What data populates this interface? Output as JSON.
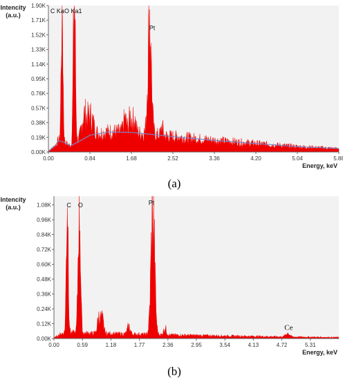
{
  "colors": {
    "spectrum": "#ee0000",
    "background_line": "#7d86c8",
    "plot_bg": "#f2f2f2"
  },
  "chart_data": [
    {
      "type": "area",
      "panel_label": "(a)",
      "ylabel": "Intencity\n(a.u.)",
      "xlabel": "Energy, keV",
      "xlim": [
        0,
        5.88
      ],
      "ylim": [
        0,
        1900
      ],
      "x_ticks": [
        "0.00",
        "0.84",
        "1.68",
        "2.52",
        "3.36",
        "4.20",
        "5.04",
        "5.88"
      ],
      "x_tick_values": [
        0,
        0.84,
        1.68,
        2.52,
        3.36,
        4.2,
        5.04,
        5.88
      ],
      "y_ticks": [
        "0.00K",
        "0.19K",
        "0.38K",
        "0.57K",
        "0.76K",
        "0.95K",
        "1.14K",
        "1.33K",
        "1.52K",
        "1.71K",
        "1.90K"
      ],
      "y_tick_values": [
        0,
        190,
        380,
        570,
        760,
        950,
        1140,
        1330,
        1520,
        1710,
        1900
      ],
      "peaks": [
        {
          "label": "C Ka1",
          "x": 0.277,
          "height": 1900,
          "width": 0.018
        },
        {
          "label": "O Ka1",
          "x": 0.525,
          "height": 1900,
          "width": 0.022
        },
        {
          "label": "Pt",
          "x": 2.048,
          "height": 1560,
          "width": 0.035
        },
        {
          "label": "",
          "x": 0.72,
          "height": 290,
          "width": 0.05
        },
        {
          "label": "",
          "x": 0.85,
          "height": 240,
          "width": 0.06
        },
        {
          "label": "",
          "x": 1.55,
          "height": 170,
          "width": 0.03
        },
        {
          "label": "",
          "x": 1.66,
          "height": 200,
          "width": 0.03
        },
        {
          "label": "",
          "x": 1.74,
          "height": 175,
          "width": 0.03
        },
        {
          "label": "",
          "x": 2.3,
          "height": 120,
          "width": 0.02
        }
      ],
      "peak_labels": [
        {
          "text": "C Ka",
          "x": 0.18,
          "y": 1800
        },
        {
          "text": "O Ka1",
          "x": 0.5,
          "y": 1800
        },
        {
          "text": "Pt",
          "x": 2.1,
          "y": 1580
        }
      ],
      "background": {
        "x": [
          0.0,
          0.15,
          0.2,
          0.3,
          0.45,
          0.6,
          0.85,
          1.2,
          1.68,
          2.52,
          3.36,
          4.2,
          5.04,
          5.88
        ],
        "y": [
          10,
          90,
          150,
          130,
          80,
          130,
          220,
          260,
          255,
          200,
          150,
          110,
          70,
          45
        ]
      },
      "grid": false,
      "legend": "none"
    },
    {
      "type": "area",
      "panel_label": "(b)",
      "ylabel": "Intencity\n(a.u.)",
      "xlabel": "Energy, keV",
      "xlim": [
        0,
        5.9
      ],
      "ylim": [
        0,
        1150
      ],
      "x_ticks": [
        "0.00",
        "0.59",
        "1.18",
        "1.77",
        "2.36",
        "2.95",
        "3.54",
        "4.13",
        "4.72",
        "5.31"
      ],
      "x_tick_values": [
        0,
        0.59,
        1.18,
        1.77,
        2.36,
        2.95,
        3.54,
        4.13,
        4.72,
        5.31
      ],
      "y_ticks": [
        "0.00K",
        "0.12K",
        "0.24K",
        "0.36K",
        "0.48K",
        "0.60K",
        "0.72K",
        "0.84K",
        "0.96K",
        "1.08K"
      ],
      "y_tick_values": [
        0,
        120,
        240,
        360,
        480,
        600,
        720,
        840,
        960,
        1080
      ],
      "peaks": [
        {
          "label": "C",
          "x": 0.277,
          "height": 1150,
          "width": 0.02
        },
        {
          "label": "O",
          "x": 0.525,
          "height": 1150,
          "width": 0.024
        },
        {
          "label": "Pt",
          "x": 2.048,
          "height": 1000,
          "width": 0.038
        },
        {
          "label": "",
          "x": 0.93,
          "height": 130,
          "width": 0.03
        },
        {
          "label": "",
          "x": 1.0,
          "height": 110,
          "width": 0.03
        },
        {
          "label": "",
          "x": 1.55,
          "height": 60,
          "width": 0.03
        },
        {
          "label": "",
          "x": 2.3,
          "height": 55,
          "width": 0.03
        },
        {
          "label": "Ce",
          "x": 4.84,
          "height": 30,
          "width": 0.04
        }
      ],
      "peak_labels": [
        {
          "text": "C",
          "x": 0.31,
          "y": 1060
        },
        {
          "text": "O",
          "x": 0.55,
          "y": 1060
        },
        {
          "text": "Pt",
          "x": 2.02,
          "y": 1080
        },
        {
          "text": "Ce",
          "x": 4.86,
          "y": 70
        }
      ],
      "background": {
        "x": [
          0.0,
          0.15,
          0.3,
          0.6,
          1.18,
          1.77,
          2.36,
          3.54,
          4.72,
          5.9
        ],
        "y": [
          5,
          40,
          50,
          45,
          40,
          35,
          30,
          22,
          15,
          10
        ]
      },
      "grid": false,
      "legend": "none"
    }
  ]
}
